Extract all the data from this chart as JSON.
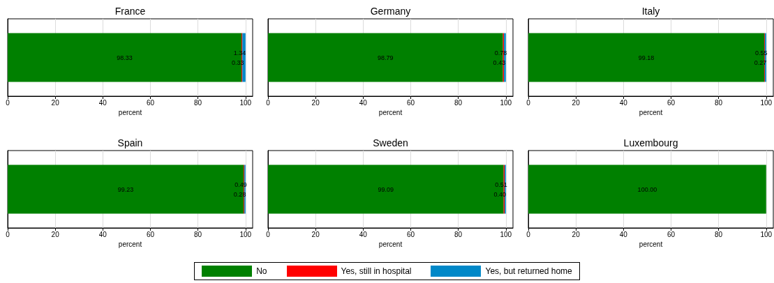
{
  "chart_data": [
    {
      "type": "bar",
      "title": "France",
      "orientation": "horizontal",
      "stacked": true,
      "categories": [
        null
      ],
      "xlabel": "percent",
      "xlim": [
        0,
        103
      ],
      "xticks": [
        0,
        20,
        40,
        60,
        80,
        100
      ],
      "grid": "x",
      "legend": "bottom",
      "series": [
        {
          "name": "No",
          "color": "#008000",
          "values": [
            98.33
          ],
          "value_labels": [
            "98.33"
          ]
        },
        {
          "name": "Yes, still in hospital",
          "color": "#ff0000",
          "values": [
            0.33
          ],
          "value_labels": [
            "0.33"
          ]
        },
        {
          "name": "Yes, but returned home",
          "color": "#0088c8",
          "values": [
            1.34
          ],
          "value_labels": [
            "1.34"
          ]
        }
      ]
    },
    {
      "type": "bar",
      "title": "Germany",
      "orientation": "horizontal",
      "stacked": true,
      "categories": [
        null
      ],
      "xlabel": "percent",
      "xlim": [
        0,
        103
      ],
      "xticks": [
        0,
        20,
        40,
        60,
        80,
        100
      ],
      "grid": "x",
      "series": [
        {
          "color": "#008000",
          "values": [
            98.79
          ],
          "value_labels": [
            "98.79"
          ]
        },
        {
          "color": "#ff0000",
          "values": [
            0.43
          ],
          "value_labels": [
            "0.43"
          ]
        },
        {
          "color": "#0088c8",
          "values": [
            0.78
          ],
          "value_labels": [
            "0.78"
          ]
        }
      ]
    },
    {
      "type": "bar",
      "title": "Italy",
      "orientation": "horizontal",
      "stacked": true,
      "categories": [
        null
      ],
      "xlabel": "percent",
      "xlim": [
        0,
        103
      ],
      "xticks": [
        0,
        20,
        40,
        60,
        80,
        100
      ],
      "grid": "x",
      "series": [
        {
          "color": "#008000",
          "values": [
            99.18
          ],
          "value_labels": [
            "99.18"
          ]
        },
        {
          "color": "#ff0000",
          "values": [
            0.27
          ],
          "value_labels": [
            "0.27"
          ]
        },
        {
          "color": "#0088c8",
          "values": [
            0.55
          ],
          "value_labels": [
            "0.55"
          ]
        }
      ]
    },
    {
      "type": "bar",
      "title": "Spain",
      "orientation": "horizontal",
      "stacked": true,
      "categories": [
        null
      ],
      "xlabel": "percent",
      "xlim": [
        0,
        103
      ],
      "xticks": [
        0,
        20,
        40,
        60,
        80,
        100
      ],
      "grid": "x",
      "series": [
        {
          "color": "#008000",
          "values": [
            99.23
          ],
          "value_labels": [
            "99.23"
          ]
        },
        {
          "color": "#ff0000",
          "values": [
            0.28
          ],
          "value_labels": [
            "0.28"
          ]
        },
        {
          "color": "#0088c8",
          "values": [
            0.49
          ],
          "value_labels": [
            "0.49"
          ]
        }
      ]
    },
    {
      "type": "bar",
      "title": "Sweden",
      "orientation": "horizontal",
      "stacked": true,
      "categories": [
        null
      ],
      "xlabel": "percent",
      "xlim": [
        0,
        103
      ],
      "xticks": [
        0,
        20,
        40,
        60,
        80,
        100
      ],
      "grid": "x",
      "series": [
        {
          "color": "#008000",
          "values": [
            99.09
          ],
          "value_labels": [
            "99.09"
          ]
        },
        {
          "color": "#ff0000",
          "values": [
            0.4
          ],
          "value_labels": [
            "0.40"
          ]
        },
        {
          "color": "#0088c8",
          "values": [
            0.51
          ],
          "value_labels": [
            "0.51"
          ]
        }
      ]
    },
    {
      "type": "bar",
      "title": "Luxembourg",
      "orientation": "horizontal",
      "stacked": true,
      "categories": [
        null
      ],
      "xlabel": "percent",
      "xlim": [
        0,
        103
      ],
      "xticks": [
        0,
        20,
        40,
        60,
        80,
        100
      ],
      "grid": "x",
      "series": [
        {
          "color": "#008000",
          "values": [
            100
          ],
          "value_labels": [
            "100.00"
          ]
        },
        {
          "color": "#ff0000",
          "values": [
            0
          ],
          "value_labels": [
            null
          ]
        },
        {
          "color": "#0088c8",
          "values": [
            0
          ],
          "value_labels": [
            null
          ]
        }
      ]
    }
  ]
}
